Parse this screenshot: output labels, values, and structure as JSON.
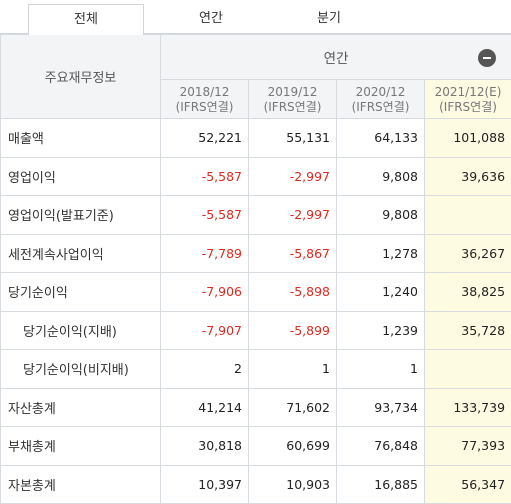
{
  "tabs": [
    {
      "label": "전체",
      "active": true
    },
    {
      "label": "연간",
      "active": false
    },
    {
      "label": "분기",
      "active": false
    }
  ],
  "table": {
    "row_header": "주요재무정보",
    "group_header": "연간",
    "collapse_icon": "minus-circle-icon",
    "periods": [
      {
        "year": "2018/12",
        "basis": "(IFRS연결)"
      },
      {
        "year": "2019/12",
        "basis": "(IFRS연결)"
      },
      {
        "year": "2020/12",
        "basis": "(IFRS연결)"
      },
      {
        "year": "2021/12(E)",
        "basis": "(IFRS연결)"
      }
    ],
    "rows": [
      {
        "label": "매출액",
        "values": [
          "52,221",
          "55,131",
          "64,133",
          "101,088"
        ]
      },
      {
        "label": "영업이익",
        "values": [
          "-5,587",
          "-2,997",
          "9,808",
          "39,636"
        ]
      },
      {
        "label": "영업이익(발표기준)",
        "values": [
          "-5,587",
          "-2,997",
          "9,808",
          ""
        ]
      },
      {
        "label": "세전계속사업이익",
        "values": [
          "-7,789",
          "-5,867",
          "1,278",
          "36,267"
        ]
      },
      {
        "label": "당기순이익",
        "values": [
          "-7,906",
          "-5,898",
          "1,240",
          "38,825"
        ]
      },
      {
        "label": "당기순이익(지배)",
        "values": [
          "-7,907",
          "-5,899",
          "1,239",
          "35,728"
        ],
        "sub": true
      },
      {
        "label": "당기순이익(비지배)",
        "values": [
          "2",
          "1",
          "1",
          ""
        ],
        "sub": true
      },
      {
        "label": "자산총계",
        "values": [
          "41,214",
          "71,602",
          "93,734",
          "133,739"
        ]
      },
      {
        "label": "부채총계",
        "values": [
          "30,818",
          "60,699",
          "76,848",
          "77,393"
        ]
      },
      {
        "label": "자본총계",
        "values": [
          "10,397",
          "10,903",
          "16,885",
          "56,347"
        ]
      }
    ]
  },
  "colors": {
    "negative": "#e0281e",
    "estimate_bg": "#fdfbe1",
    "header_bg": "#f2f4f6"
  }
}
